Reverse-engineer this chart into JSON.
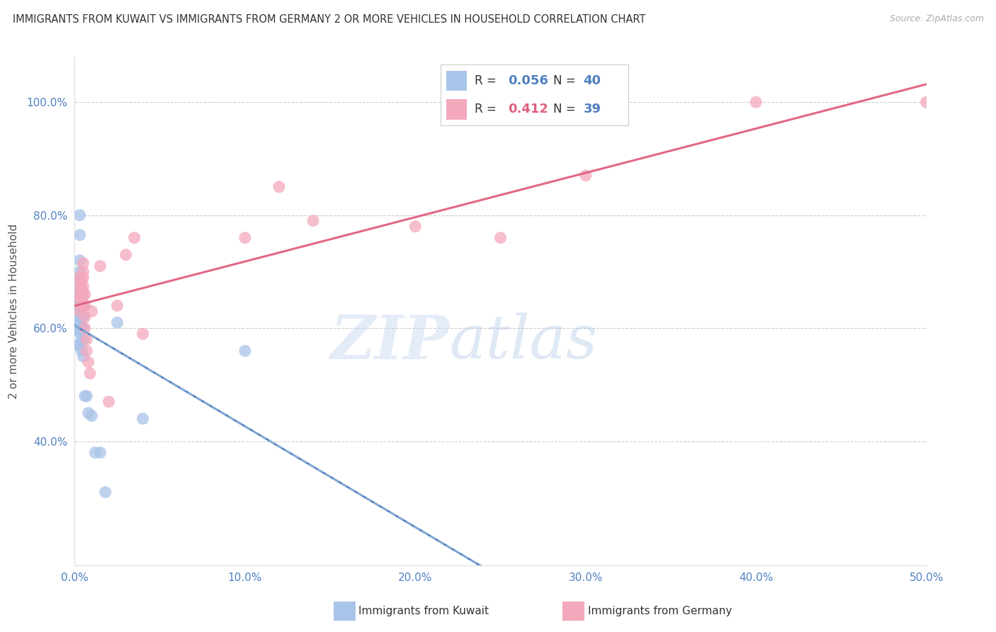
{
  "title": "IMMIGRANTS FROM KUWAIT VS IMMIGRANTS FROM GERMANY 2 OR MORE VEHICLES IN HOUSEHOLD CORRELATION CHART",
  "source": "Source: ZipAtlas.com",
  "ylabel": "2 or more Vehicles in Household",
  "xlim": [
    0.0,
    0.5
  ],
  "ylim": [
    0.18,
    1.08
  ],
  "x_ticks": [
    0.0,
    0.1,
    0.2,
    0.3,
    0.4,
    0.5
  ],
  "x_tick_labels": [
    "0.0%",
    "10.0%",
    "20.0%",
    "30.0%",
    "40.0%",
    "50.0%"
  ],
  "y_ticks": [
    0.4,
    0.6,
    0.8,
    1.0
  ],
  "y_tick_labels": [
    "40.0%",
    "60.0%",
    "80.0%",
    "100.0%"
  ],
  "watermark_zip": "ZIP",
  "watermark_atlas": "atlas",
  "r_kuwait": "0.056",
  "n_kuwait": "40",
  "r_germany": "0.412",
  "n_germany": "39",
  "color_kuwait": "#a8c4e8",
  "color_germany": "#f4a8bc",
  "color_line_kuwait_solid": "#5080c0",
  "color_line_kuwait_dash": "#8ab0d8",
  "color_line_germany": "#e06080",
  "color_axis_text": "#5080c0",
  "color_r_germany": "#e06080",
  "color_grid": "#cccccc",
  "color_title": "#333333",
  "kuwait_x": [
    0.001,
    0.001,
    0.002,
    0.002,
    0.002,
    0.003,
    0.003,
    0.003,
    0.003,
    0.003,
    0.003,
    0.003,
    0.003,
    0.003,
    0.003,
    0.003,
    0.003,
    0.003,
    0.003,
    0.004,
    0.004,
    0.004,
    0.004,
    0.004,
    0.004,
    0.005,
    0.005,
    0.005,
    0.005,
    0.005,
    0.006,
    0.007,
    0.008,
    0.01,
    0.012,
    0.015,
    0.018,
    0.025,
    0.04,
    0.1
  ],
  "kuwait_y": [
    0.595,
    0.63,
    0.57,
    0.61,
    0.64,
    0.57,
    0.595,
    0.61,
    0.625,
    0.64,
    0.65,
    0.66,
    0.665,
    0.67,
    0.685,
    0.7,
    0.72,
    0.765,
    0.8,
    0.56,
    0.58,
    0.6,
    0.62,
    0.64,
    0.66,
    0.55,
    0.58,
    0.6,
    0.62,
    0.64,
    0.48,
    0.48,
    0.45,
    0.445,
    0.38,
    0.38,
    0.31,
    0.61,
    0.44,
    0.56
  ],
  "germany_x": [
    0.003,
    0.003,
    0.003,
    0.003,
    0.003,
    0.004,
    0.004,
    0.004,
    0.004,
    0.005,
    0.005,
    0.005,
    0.005,
    0.005,
    0.005,
    0.005,
    0.006,
    0.006,
    0.006,
    0.006,
    0.007,
    0.007,
    0.008,
    0.009,
    0.01,
    0.015,
    0.02,
    0.025,
    0.03,
    0.035,
    0.04,
    0.1,
    0.12,
    0.14,
    0.2,
    0.25,
    0.3,
    0.4,
    0.5
  ],
  "germany_y": [
    0.63,
    0.65,
    0.66,
    0.675,
    0.69,
    0.64,
    0.655,
    0.67,
    0.685,
    0.64,
    0.655,
    0.665,
    0.675,
    0.69,
    0.7,
    0.715,
    0.6,
    0.62,
    0.64,
    0.66,
    0.56,
    0.58,
    0.54,
    0.52,
    0.63,
    0.71,
    0.47,
    0.64,
    0.73,
    0.76,
    0.59,
    0.76,
    0.85,
    0.79,
    0.78,
    0.76,
    0.87,
    1.0,
    1.0
  ],
  "background_color": "#ffffff"
}
